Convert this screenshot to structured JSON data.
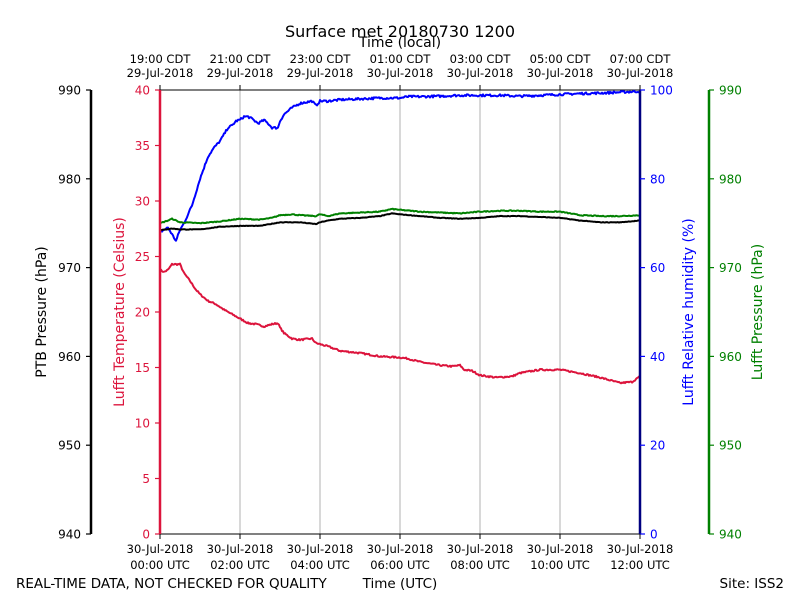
{
  "chart_data": {
    "type": "line",
    "title": "Surface met 20180730 1200",
    "top_xlabel": "Time (local)",
    "xlabel": "Time (UTC)",
    "footer_left": "REAL-TIME DATA, NOT CHECKED FOR QUALITY",
    "footer_right": "Site: ISS2",
    "xlim_hours": [
      0,
      12
    ],
    "grid_x": true,
    "x_ticks_utc": [
      {
        "hour": 0,
        "line1": "30-Jul-2018",
        "line2": "00:00 UTC"
      },
      {
        "hour": 2,
        "line1": "30-Jul-2018",
        "line2": "02:00 UTC"
      },
      {
        "hour": 4,
        "line1": "30-Jul-2018",
        "line2": "04:00 UTC"
      },
      {
        "hour": 6,
        "line1": "30-Jul-2018",
        "line2": "06:00 UTC"
      },
      {
        "hour": 8,
        "line1": "30-Jul-2018",
        "line2": "08:00 UTC"
      },
      {
        "hour": 10,
        "line1": "30-Jul-2018",
        "line2": "10:00 UTC"
      },
      {
        "hour": 12,
        "line1": "30-Jul-2018",
        "line2": "12:00 UTC"
      }
    ],
    "x_ticks_local": [
      {
        "hour": 0,
        "line1": "19:00 CDT",
        "line2": "29-Jul-2018"
      },
      {
        "hour": 2,
        "line1": "21:00 CDT",
        "line2": "29-Jul-2018"
      },
      {
        "hour": 4,
        "line1": "23:00 CDT",
        "line2": "29-Jul-2018"
      },
      {
        "hour": 6,
        "line1": "01:00 CDT",
        "line2": "30-Jul-2018"
      },
      {
        "hour": 8,
        "line1": "03:00 CDT",
        "line2": "30-Jul-2018"
      },
      {
        "hour": 10,
        "line1": "05:00 CDT",
        "line2": "30-Jul-2018"
      },
      {
        "hour": 12,
        "line1": "07:00 CDT",
        "line2": "30-Jul-2018"
      }
    ],
    "axes": {
      "ptb": {
        "label": "PTB Pressure (hPa)",
        "ylim": [
          940,
          990
        ],
        "ticks": [
          940,
          950,
          960,
          970,
          980,
          990
        ],
        "color": "#000000"
      },
      "temp": {
        "label": "Lufft Temperature (Celsius)",
        "ylim": [
          0,
          40
        ],
        "ticks": [
          0,
          5,
          10,
          15,
          20,
          25,
          30,
          35,
          40
        ],
        "color": "#dc143c"
      },
      "rh": {
        "label": "Lufft Relative humidity (%)",
        "ylim": [
          0,
          100
        ],
        "ticks": [
          0,
          20,
          40,
          60,
          80,
          100
        ],
        "color": "#0000ff"
      },
      "lufft_p": {
        "label": "Lufft Pressure (hPa)",
        "ylim": [
          940,
          990
        ],
        "ticks": [
          940,
          950,
          960,
          970,
          980,
          990
        ],
        "color": "#008000"
      }
    },
    "series": [
      {
        "name": "Lufft Temperature",
        "axis": "temp",
        "color": "#dc143c",
        "x": [
          0,
          0.1,
          0.2,
          0.3,
          0.35,
          0.5,
          0.6,
          0.75,
          0.9,
          1.0,
          1.2,
          1.4,
          1.6,
          1.8,
          2.0,
          2.2,
          2.4,
          2.6,
          2.8,
          2.95,
          3.0,
          3.1,
          3.3,
          3.5,
          3.8,
          3.9,
          4.0,
          4.2,
          4.5,
          5.0,
          5.5,
          6.0,
          6.2,
          6.5,
          7.0,
          7.3,
          7.5,
          7.6,
          7.8,
          8.0,
          8.4,
          8.8,
          9.0,
          9.5,
          10.0,
          10.5,
          11.0,
          11.5,
          11.8,
          12.0
        ],
        "y": [
          23.8,
          23.6,
          23.8,
          24.3,
          24.3,
          24.3,
          23.5,
          22.8,
          22.0,
          21.6,
          21.0,
          20.7,
          20.2,
          19.8,
          19.4,
          19.0,
          18.9,
          18.7,
          18.9,
          19.0,
          18.6,
          18.1,
          17.6,
          17.5,
          17.6,
          17.2,
          17.1,
          16.9,
          16.5,
          16.3,
          16.0,
          15.9,
          15.8,
          15.5,
          15.2,
          15.1,
          15.2,
          14.8,
          14.7,
          14.3,
          14.1,
          14.2,
          14.5,
          14.8,
          14.8,
          14.5,
          14.1,
          13.6,
          13.7,
          14.2
        ]
      },
      {
        "name": "Lufft Relative humidity",
        "axis": "rh",
        "color": "#0000ff",
        "x": [
          0,
          0.1,
          0.2,
          0.3,
          0.4,
          0.5,
          0.6,
          0.7,
          0.8,
          0.9,
          1.0,
          1.1,
          1.2,
          1.35,
          1.5,
          1.6,
          1.7,
          1.8,
          1.9,
          2.0,
          2.1,
          2.2,
          2.3,
          2.45,
          2.6,
          2.7,
          2.8,
          2.95,
          3.0,
          3.1,
          3.3,
          3.5,
          3.8,
          3.9,
          4.0,
          4.2,
          4.5,
          5.0,
          5.5,
          5.9,
          6.0,
          6.2,
          6.5,
          7.0,
          7.5,
          8.0,
          8.5,
          9.0,
          9.5,
          10.0,
          10.5,
          11.0,
          11.5,
          12.0
        ],
        "y": [
          68,
          68.5,
          69,
          67.5,
          66,
          68.5,
          70,
          72,
          74,
          77,
          80,
          82.5,
          85,
          87,
          88.5,
          90,
          91.5,
          92,
          93,
          93.3,
          94,
          94,
          93.5,
          92.5,
          93.2,
          92.5,
          91.5,
          91.5,
          93,
          94.5,
          96,
          97,
          97.5,
          96.5,
          97.5,
          97.5,
          97.8,
          98,
          98.2,
          98.2,
          98.2,
          98.5,
          98.5,
          98.6,
          98.8,
          98.8,
          98.8,
          98.6,
          98.8,
          99,
          99.2,
          99.3,
          99.5,
          99.7
        ]
      },
      {
        "name": "Lufft Pressure",
        "axis": "lufft_p",
        "color": "#008000",
        "x": [
          0,
          0.2,
          0.3,
          0.5,
          1.0,
          1.5,
          2.0,
          2.5,
          2.8,
          3.0,
          3.3,
          3.5,
          3.9,
          4.0,
          4.2,
          4.5,
          5.0,
          5.5,
          5.8,
          6.0,
          6.5,
          7.0,
          7.5,
          8.0,
          8.5,
          9.0,
          9.5,
          10.0,
          10.5,
          11.0,
          11.5,
          12.0
        ],
        "y": [
          975.0,
          975.3,
          975.5,
          975.1,
          975.0,
          975.2,
          975.5,
          975.4,
          975.6,
          975.9,
          976.0,
          975.9,
          975.8,
          976.0,
          975.8,
          976.1,
          976.2,
          976.3,
          976.6,
          976.5,
          976.3,
          976.2,
          976.1,
          976.3,
          976.4,
          976.4,
          976.3,
          976.3,
          975.9,
          975.8,
          975.8,
          975.9
        ]
      },
      {
        "name": "PTB Pressure",
        "axis": "ptb",
        "color": "#000000",
        "x": [
          0,
          0.3,
          0.5,
          1.0,
          1.5,
          2.0,
          2.5,
          3.0,
          3.5,
          3.9,
          4.0,
          4.2,
          4.5,
          5.0,
          5.5,
          5.8,
          6.0,
          6.5,
          7.0,
          7.5,
          8.0,
          8.5,
          9.0,
          9.5,
          10.0,
          10.5,
          11.0,
          11.5,
          12.0
        ],
        "y": [
          974.2,
          974.4,
          974.3,
          974.3,
          974.6,
          974.7,
          974.7,
          975.1,
          975.1,
          974.9,
          975.1,
          975.3,
          975.5,
          975.6,
          975.8,
          976.1,
          976.0,
          975.8,
          975.6,
          975.5,
          975.6,
          975.8,
          975.8,
          975.7,
          975.6,
          975.3,
          975.1,
          975.1,
          975.3
        ]
      }
    ]
  }
}
